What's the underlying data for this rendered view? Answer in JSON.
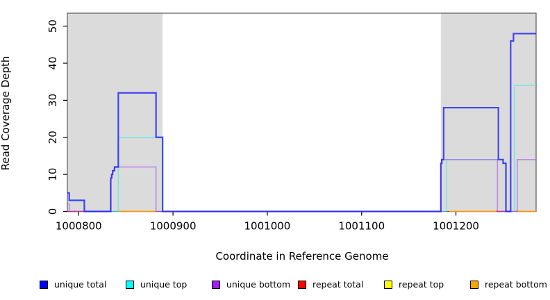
{
  "chart_data": {
    "type": "line",
    "subtype": "step-coverage",
    "title": "",
    "xlabel": "Coordinate in Reference Genome",
    "ylabel": "Read Coverage Depth",
    "xlim": [
      1000788,
      1001285
    ],
    "ylim": [
      0,
      53.5
    ],
    "x_ticks": [
      1000800,
      1000900,
      1001000,
      1001100,
      1001200
    ],
    "y_ticks": [
      0,
      10,
      20,
      30,
      40,
      50
    ],
    "grid": false,
    "legend_position": "bottom",
    "background_color": "#ffffff",
    "shaded_regions": {
      "meaning": "repeat-region shading",
      "color": "#DBDBDB",
      "x_ranges": [
        [
          1000788,
          1000889
        ],
        [
          1001184,
          1001285
        ]
      ]
    },
    "series": [
      {
        "name": "unique total",
        "legend_color": "#0000FF",
        "line_color": "rgba(30,30,245,0.8)",
        "line_width": 2.2,
        "segments": [
          [
            [
              1000788,
              5
            ],
            [
              1000790,
              3
            ],
            [
              1000806,
              0
            ],
            [
              1000834,
              9
            ],
            [
              1000835,
              10
            ],
            [
              1000836,
              11
            ],
            [
              1000838,
              12
            ],
            [
              1000842,
              32
            ],
            [
              1000882,
              20
            ],
            [
              1000889,
              0
            ],
            [
              1001184,
              13
            ],
            [
              1001185,
              14
            ],
            [
              1001187,
              28
            ],
            [
              1001245,
              14
            ],
            [
              1001250,
              13
            ],
            [
              1001253,
              0
            ],
            [
              1001258,
              46
            ],
            [
              1001261,
              48
            ],
            [
              1001285,
              48
            ]
          ]
        ]
      },
      {
        "name": "unique top",
        "legend_color": "#00FFFF",
        "line_color": "rgba(60,235,235,0.6)",
        "line_width": 1.6,
        "segments": [
          [
            [
              1000788,
              3
            ],
            [
              1000806,
              0
            ],
            [
              1000842,
              20
            ],
            [
              1000889,
              0
            ],
            [
              1001190,
              14
            ],
            [
              1001250,
              13
            ],
            [
              1001253,
              0
            ],
            [
              1001262,
              34
            ],
            [
              1001285,
              34
            ]
          ]
        ]
      },
      {
        "name": "unique bottom",
        "legend_color": "#A020F0",
        "line_color": "rgba(165,70,240,0.55)",
        "line_width": 1.6,
        "segments": [
          [
            [
              1000788,
              2
            ],
            [
              1000790,
              0
            ],
            [
              1000834,
              9
            ],
            [
              1000835,
              10
            ],
            [
              1000836,
              11
            ],
            [
              1000838,
              12
            ],
            [
              1000882,
              0
            ],
            [
              1001184,
              13
            ],
            [
              1001185,
              14
            ],
            [
              1001244,
              0
            ],
            [
              1001265,
              14
            ],
            [
              1001285,
              14
            ]
          ]
        ]
      },
      {
        "name": "repeat total",
        "legend_color": "#FF0000",
        "line_color": "rgba(225,20,70,0.8)",
        "line_width": 1.6,
        "segments": [
          [
            [
              1000788,
              0
            ],
            [
              1000806,
              0
            ]
          ],
          [
            [
              1001243,
              0
            ],
            [
              1001252,
              0
            ]
          ]
        ]
      },
      {
        "name": "repeat top",
        "legend_color": "#FFFF00",
        "line_color": "rgba(255,255,0,0.9)",
        "line_width": 1.6,
        "segments": []
      },
      {
        "name": "repeat bottom",
        "legend_color": "#FFA500",
        "line_color": "rgba(255,153,0,0.95)",
        "line_width": 1.8,
        "segments": [
          [
            [
              1000842,
              0
            ],
            [
              1000882,
              0
            ]
          ],
          [
            [
              1001193,
              0
            ],
            [
              1001243,
              0
            ]
          ],
          [
            [
              1001263,
              0
            ],
            [
              1001285,
              0
            ]
          ]
        ]
      }
    ]
  }
}
